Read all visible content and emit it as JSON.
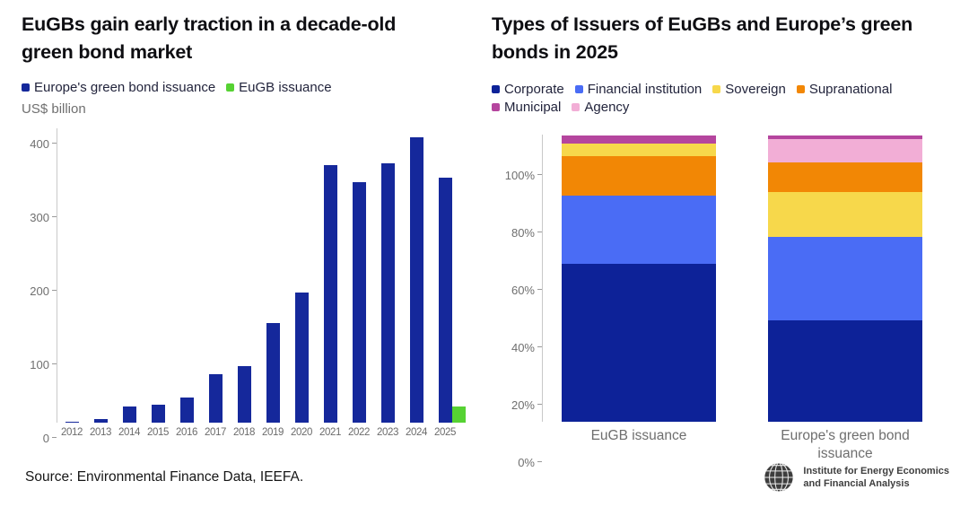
{
  "chart_data": [
    {
      "type": "bar",
      "title": "EuGBs gain early traction in a decade-old green bond market",
      "ylabel": "US$ billion",
      "xlabel": "",
      "ylim": [
        0,
        400
      ],
      "y_ticks": [
        0,
        100,
        200,
        300,
        400
      ],
      "grid": false,
      "legend_position": "top",
      "categories": [
        "2012",
        "2013",
        "2014",
        "2015",
        "2016",
        "2017",
        "2018",
        "2019",
        "2020",
        "2021",
        "2022",
        "2023",
        "2024",
        "2025"
      ],
      "series": [
        {
          "name": "Europe's green bond issuance",
          "color": "#15289b",
          "values": [
            2,
            6,
            23,
            25,
            35,
            67,
            78,
            136,
            177,
            351,
            328,
            353,
            389,
            333
          ]
        },
        {
          "name": "EuGB issuance",
          "color": "#56d233",
          "values": [
            null,
            null,
            null,
            null,
            null,
            null,
            null,
            null,
            null,
            null,
            null,
            null,
            null,
            22
          ]
        }
      ]
    },
    {
      "type": "stacked-bar-100",
      "title": "Types of Issuers of EuGBs and Europe’s green bonds in 2025",
      "ylabel": "",
      "xlabel": "",
      "ylim": [
        0,
        100
      ],
      "y_ticks": [
        0,
        20,
        40,
        60,
        80,
        100
      ],
      "tick_suffix": "%",
      "grid": false,
      "legend_position": "top",
      "legend": [
        "Corporate",
        "Financial institution",
        "Sovereign",
        "Supranational",
        "Municipal",
        "Agency"
      ],
      "colors": {
        "Corporate": "#0d2298",
        "Financial institution": "#4a6cf5",
        "Sovereign": "#f7d84b",
        "Supranational": "#f28705",
        "Municipal": "#b5459e",
        "Agency": "#f2aed6"
      },
      "bars": [
        {
          "category": "EuGB issuance",
          "segments": [
            {
              "name": "Corporate",
              "value": 55
            },
            {
              "name": "Financial institution",
              "value": 24
            },
            {
              "name": "Supranational",
              "value": 13.5
            },
            {
              "name": "Sovereign",
              "value": 4.5
            },
            {
              "name": "Municipal",
              "value": 3
            }
          ]
        },
        {
          "category": "Europe's green bond issuance",
          "segments": [
            {
              "name": "Corporate",
              "value": 35.5
            },
            {
              "name": "Financial institution",
              "value": 29
            },
            {
              "name": "Sovereign",
              "value": 15.5
            },
            {
              "name": "Supranational",
              "value": 10.5
            },
            {
              "name": "Agency",
              "value": 8
            },
            {
              "name": "Municipal",
              "value": 1.5
            }
          ]
        }
      ]
    }
  ],
  "footer": {
    "source": "Source: Environmental Finance Data, IEEFA.",
    "logo_line1": "Institute for Energy Economics",
    "logo_line2": "and Financial Analysis"
  }
}
